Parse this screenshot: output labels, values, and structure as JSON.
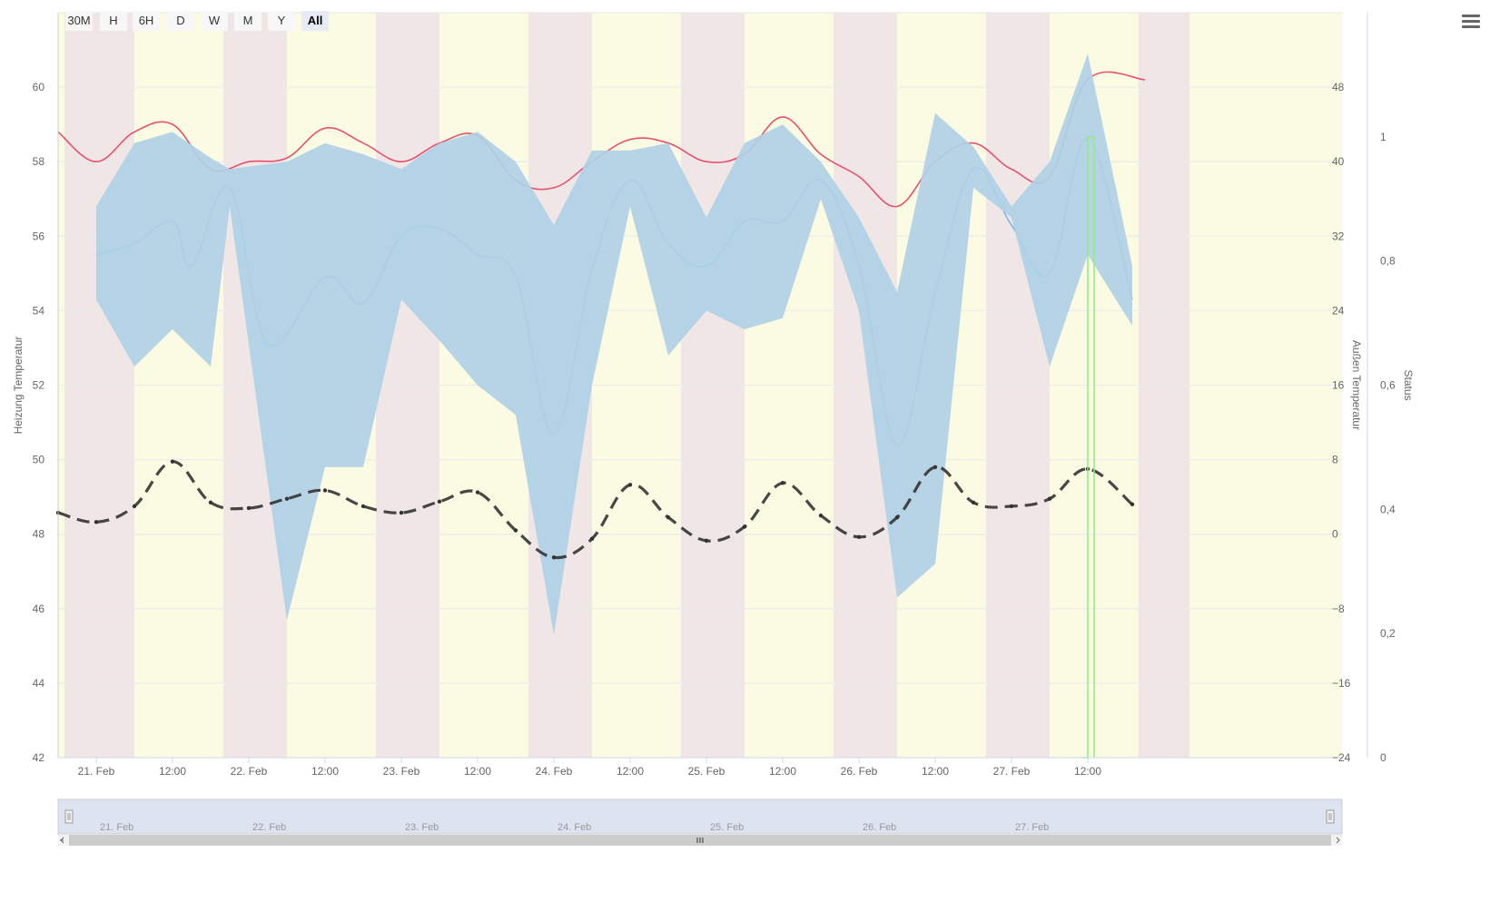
{
  "range_selector": {
    "buttons": [
      "30M",
      "H",
      "6H",
      "D",
      "W",
      "M",
      "Y",
      "All"
    ],
    "selected": "All"
  },
  "menu": {
    "icon": "hamburger-menu-icon"
  },
  "colors": {
    "heating": "#e8506e",
    "flow": "#7cb5ec",
    "band_blue": "#aec8ea",
    "band_teal": "#b2d9e0",
    "outside": "#333333",
    "status": "#90ed7d",
    "day_band": "#fbfbe3",
    "night_band": "#f1e6e6",
    "navigator_fill": "#d4dcee"
  },
  "chart_data": {
    "type": "line",
    "x_range": [
      "2021-02-20 18:00",
      "2021-02-28 04:00"
    ],
    "x_tick_labels": [
      "21. Feb",
      "12:00",
      "22. Feb",
      "12:00",
      "23. Feb",
      "12:00",
      "24. Feb",
      "12:00",
      "25. Feb",
      "12:00",
      "26. Feb",
      "12:00",
      "27. Feb",
      "12:00"
    ],
    "night_bands": [
      [
        "2021-02-20 19:00",
        "2021-02-21 06:00"
      ],
      [
        "2021-02-21 20:00",
        "2021-02-22 06:00"
      ],
      [
        "2021-02-22 20:00",
        "2021-02-23 06:00"
      ],
      [
        "2021-02-23 20:00",
        "2021-02-24 06:00"
      ],
      [
        "2021-02-24 20:00",
        "2021-02-25 06:00"
      ],
      [
        "2021-02-25 20:00",
        "2021-02-26 06:00"
      ],
      [
        "2021-02-26 20:00",
        "2021-02-27 06:00"
      ],
      [
        "2021-02-27 20:00",
        "2021-02-28 04:00"
      ]
    ],
    "y_axes": [
      {
        "id": "left",
        "title": "Heizung Temperatur",
        "min": 42,
        "max": 62,
        "ticks": [
          "42",
          "44",
          "46",
          "48",
          "50",
          "52",
          "54",
          "56",
          "58",
          "60"
        ]
      },
      {
        "id": "right1",
        "title": "Außen Temperatur",
        "min": -24,
        "max": 56,
        "ticks": [
          "−24",
          "−16",
          "−8",
          "0",
          "8",
          "16",
          "24",
          "32",
          "40",
          "48"
        ]
      },
      {
        "id": "right2",
        "title": "Status",
        "min": 0,
        "max": 1.2,
        "ticks": [
          "0",
          "0,2",
          "0,4",
          "0,6",
          "0,8",
          "1"
        ]
      }
    ],
    "series": [
      {
        "type": "spline",
        "axis": "left",
        "color": "#e8506e",
        "points": [
          [
            "2021-02-20 18:00",
            58.8
          ],
          [
            "2021-02-21 00:00",
            58.0
          ],
          [
            "2021-02-21 06:00",
            58.8
          ],
          [
            "2021-02-21 12:00",
            59.0
          ],
          [
            "2021-02-21 18:00",
            57.8
          ],
          [
            "2021-02-22 00:00",
            58.0
          ],
          [
            "2021-02-22 06:00",
            58.1
          ],
          [
            "2021-02-22 12:00",
            58.9
          ],
          [
            "2021-02-22 18:00",
            58.5
          ],
          [
            "2021-02-23 00:00",
            58.0
          ],
          [
            "2021-02-23 06:00",
            58.5
          ],
          [
            "2021-02-23 12:00",
            58.7
          ],
          [
            "2021-02-23 18:00",
            57.5
          ],
          [
            "2021-02-24 00:00",
            57.3
          ],
          [
            "2021-02-24 06:00",
            58.0
          ],
          [
            "2021-02-24 12:00",
            58.6
          ],
          [
            "2021-02-24 18:00",
            58.5
          ],
          [
            "2021-02-25 00:00",
            58.0
          ],
          [
            "2021-02-25 06:00",
            58.2
          ],
          [
            "2021-02-25 12:00",
            59.2
          ],
          [
            "2021-02-25 18:00",
            58.2
          ],
          [
            "2021-02-26 00:00",
            57.6
          ],
          [
            "2021-02-26 06:00",
            56.8
          ],
          [
            "2021-02-26 12:00",
            58.0
          ],
          [
            "2021-02-26 18:00",
            58.5
          ],
          [
            "2021-02-27 00:00",
            57.8
          ],
          [
            "2021-02-27 06:00",
            57.6
          ],
          [
            "2021-02-27 12:00",
            60.2
          ],
          [
            "2021-02-27 21:00",
            60.2
          ]
        ]
      },
      {
        "type": "spline",
        "axis": "left",
        "color": "#7cb5ec",
        "points": [
          [
            "2021-02-21 00:00",
            55.5
          ],
          [
            "2021-02-21 06:00",
            55.8
          ],
          [
            "2021-02-21 12:00",
            56.4
          ],
          [
            "2021-02-21 15:00",
            55.2
          ],
          [
            "2021-02-21 21:00",
            57.3
          ],
          [
            "2021-02-22 03:00",
            53.1
          ],
          [
            "2021-02-22 12:00",
            54.9
          ],
          [
            "2021-02-22 18:00",
            54.2
          ],
          [
            "2021-02-23 00:00",
            56.0
          ],
          [
            "2021-02-23 06:00",
            56.2
          ],
          [
            "2021-02-23 12:00",
            55.5
          ],
          [
            "2021-02-23 18:00",
            54.9
          ],
          [
            "2021-02-24 00:00",
            50.7
          ],
          [
            "2021-02-24 06:00",
            55.1
          ],
          [
            "2021-02-24 12:00",
            57.5
          ],
          [
            "2021-02-24 18:00",
            55.8
          ],
          [
            "2021-02-25 00:00",
            55.2
          ],
          [
            "2021-02-25 06:00",
            56.4
          ],
          [
            "2021-02-25 12:00",
            56.4
          ],
          [
            "2021-02-25 18:00",
            57.5
          ],
          [
            "2021-02-26 00:00",
            55.2
          ],
          [
            "2021-02-26 06:00",
            50.4
          ],
          [
            "2021-02-26 12:00",
            54.5
          ],
          [
            "2021-02-26 18:00",
            57.8
          ],
          [
            "2021-02-27 00:00",
            56.3
          ],
          [
            "2021-02-27 06:00",
            55.0
          ],
          [
            "2021-02-27 12:00",
            58.6
          ],
          [
            "2021-02-27 19:00",
            54.3
          ]
        ]
      },
      {
        "type": "arearange",
        "axis": "left",
        "color": "#aec8ea",
        "points": [
          [
            "2021-02-21 00:00",
            54.3,
            56.8
          ],
          [
            "2021-02-21 06:00",
            52.5,
            58.5
          ],
          [
            "2021-02-21 12:00",
            53.5,
            58.8
          ],
          [
            "2021-02-21 18:00",
            52.5,
            58.1
          ],
          [
            "2021-02-21 21:00",
            56.8,
            57.8
          ],
          [
            "2021-02-22 06:00",
            45.7,
            58.0
          ],
          [
            "2021-02-22 12:00",
            49.8,
            58.5
          ],
          [
            "2021-02-22 18:00",
            49.8,
            58.2
          ],
          [
            "2021-02-23 00:00",
            54.3,
            57.8
          ],
          [
            "2021-02-23 06:00",
            53.2,
            58.5
          ],
          [
            "2021-02-23 12:00",
            52.0,
            58.8
          ],
          [
            "2021-02-23 18:00",
            51.2,
            58.0
          ],
          [
            "2021-02-24 00:00",
            45.3,
            56.3
          ],
          [
            "2021-02-24 06:00",
            52.0,
            58.3
          ],
          [
            "2021-02-24 12:00",
            56.8,
            58.3
          ],
          [
            "2021-02-24 18:00",
            52.8,
            58.5
          ],
          [
            "2021-02-25 00:00",
            54.0,
            56.5
          ],
          [
            "2021-02-25 06:00",
            53.5,
            58.5
          ],
          [
            "2021-02-25 12:00",
            53.8,
            59.0
          ],
          [
            "2021-02-25 18:00",
            57.0,
            58.0
          ],
          [
            "2021-02-26 00:00",
            54.0,
            56.5
          ],
          [
            "2021-02-26 06:00",
            46.3,
            54.5
          ],
          [
            "2021-02-26 12:00",
            47.2,
            59.3
          ],
          [
            "2021-02-26 18:00",
            57.3,
            58.4
          ],
          [
            "2021-02-27 00:00",
            56.5,
            56.8
          ],
          [
            "2021-02-27 06:00",
            52.5,
            58.0
          ],
          [
            "2021-02-27 12:00",
            55.5,
            60.9
          ],
          [
            "2021-02-27 19:00",
            53.6,
            55.2
          ]
        ]
      },
      {
        "type": "line",
        "axis": "right1",
        "color": "#333333",
        "dash": "dashed",
        "points": [
          [
            "2021-02-20 18:00",
            2.3
          ],
          [
            "2021-02-21 00:00",
            1.3
          ],
          [
            "2021-02-21 06:00",
            3.0
          ],
          [
            "2021-02-21 12:00",
            7.8
          ],
          [
            "2021-02-21 18:00",
            3.4
          ],
          [
            "2021-02-22 00:00",
            2.8
          ],
          [
            "2021-02-22 06:00",
            3.8
          ],
          [
            "2021-02-22 12:00",
            4.7
          ],
          [
            "2021-02-22 18:00",
            3.0
          ],
          [
            "2021-02-23 00:00",
            2.3
          ],
          [
            "2021-02-23 06:00",
            3.5
          ],
          [
            "2021-02-23 12:00",
            4.5
          ],
          [
            "2021-02-23 18:00",
            0.4
          ],
          [
            "2021-02-24 00:00",
            -2.5
          ],
          [
            "2021-02-24 06:00",
            -0.5
          ],
          [
            "2021-02-24 12:00",
            5.3
          ],
          [
            "2021-02-24 18:00",
            1.8
          ],
          [
            "2021-02-25 00:00",
            -0.7
          ],
          [
            "2021-02-25 06:00",
            0.8
          ],
          [
            "2021-02-25 12:00",
            5.5
          ],
          [
            "2021-02-25 18:00",
            2.0
          ],
          [
            "2021-02-26 00:00",
            -0.3
          ],
          [
            "2021-02-26 06:00",
            1.8
          ],
          [
            "2021-02-26 12:00",
            7.2
          ],
          [
            "2021-02-26 18:00",
            3.4
          ],
          [
            "2021-02-27 00:00",
            3.0
          ],
          [
            "2021-02-27 06:00",
            3.8
          ],
          [
            "2021-02-27 12:00",
            7.0
          ],
          [
            "2021-02-27 19:00",
            3.2
          ]
        ]
      },
      {
        "type": "step",
        "axis": "right2",
        "color": "#90ed7d",
        "points": [
          [
            "2021-02-27 11:00",
            0
          ],
          [
            "2021-02-27 12:00",
            0
          ],
          [
            "2021-02-27 12:00",
            1
          ],
          [
            "2021-02-27 13:00",
            1
          ],
          [
            "2021-02-27 13:00",
            0
          ]
        ]
      }
    ],
    "navigator": {
      "tick_labels": [
        "21. Feb",
        "22. Feb",
        "23. Feb",
        "24. Feb",
        "25. Feb",
        "26. Feb",
        "27. Feb"
      ]
    }
  }
}
